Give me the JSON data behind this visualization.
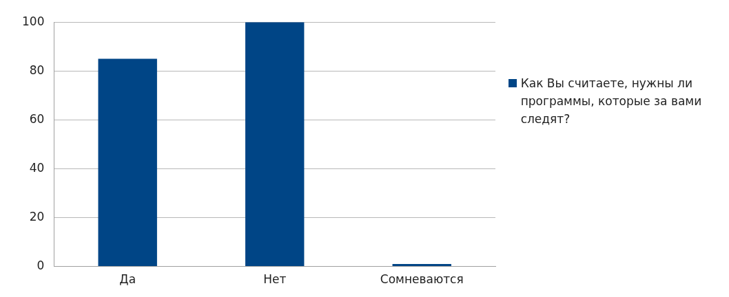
{
  "chart_data": {
    "type": "bar",
    "categories": [
      "Да",
      "Нет",
      "Сомневаются"
    ],
    "series": [
      {
        "name": "Как Вы считаете, нужны ли программы, которые за вами следят?",
        "color": "#004586",
        "values": [
          85,
          100,
          1
        ]
      }
    ],
    "ylim": [
      0,
      100
    ],
    "yticks": [
      0,
      20,
      40,
      60,
      80,
      100
    ],
    "grid": "y",
    "legend": "right"
  }
}
